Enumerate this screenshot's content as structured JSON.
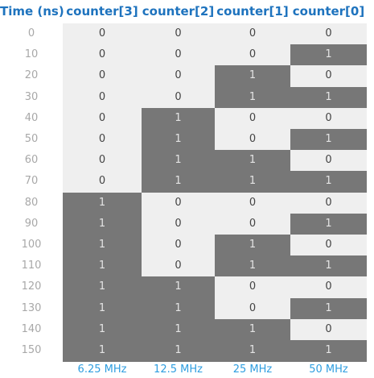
{
  "headers": {
    "time": "Time (ns)",
    "c3": "counter[3]",
    "c2": "counter[2]",
    "c1": "counter[1]",
    "c0": "counter[0]"
  },
  "rows": [
    {
      "time": "0",
      "c3": "0",
      "c2": "0",
      "c1": "0",
      "c0": "0"
    },
    {
      "time": "10",
      "c3": "0",
      "c2": "0",
      "c1": "0",
      "c0": "1"
    },
    {
      "time": "20",
      "c3": "0",
      "c2": "0",
      "c1": "1",
      "c0": "0"
    },
    {
      "time": "30",
      "c3": "0",
      "c2": "0",
      "c1": "1",
      "c0": "1"
    },
    {
      "time": "40",
      "c3": "0",
      "c2": "1",
      "c1": "0",
      "c0": "0"
    },
    {
      "time": "50",
      "c3": "0",
      "c2": "1",
      "c1": "0",
      "c0": "1"
    },
    {
      "time": "60",
      "c3": "0",
      "c2": "1",
      "c1": "1",
      "c0": "0"
    },
    {
      "time": "70",
      "c3": "0",
      "c2": "1",
      "c1": "1",
      "c0": "1"
    },
    {
      "time": "80",
      "c3": "1",
      "c2": "0",
      "c1": "0",
      "c0": "0"
    },
    {
      "time": "90",
      "c3": "1",
      "c2": "0",
      "c1": "0",
      "c0": "1"
    },
    {
      "time": "100",
      "c3": "1",
      "c2": "0",
      "c1": "1",
      "c0": "0"
    },
    {
      "time": "110",
      "c3": "1",
      "c2": "0",
      "c1": "1",
      "c0": "1"
    },
    {
      "time": "120",
      "c3": "1",
      "c2": "1",
      "c1": "0",
      "c0": "0"
    },
    {
      "time": "130",
      "c3": "1",
      "c2": "1",
      "c1": "0",
      "c0": "1"
    },
    {
      "time": "140",
      "c3": "1",
      "c2": "1",
      "c1": "1",
      "c0": "0"
    },
    {
      "time": "150",
      "c3": "1",
      "c2": "1",
      "c1": "1",
      "c0": "1"
    }
  ],
  "frequencies": {
    "c3": "6.25 MHz",
    "c2": "12.5 MHz",
    "c1": "25 MHz",
    "c0": "50 MHz"
  },
  "colors": {
    "header_text": "#1e73be",
    "frequency_text": "#2f9ee0",
    "time_text": "#a8a8a8",
    "cell_low": "#efefef",
    "cell_high": "#777777"
  }
}
